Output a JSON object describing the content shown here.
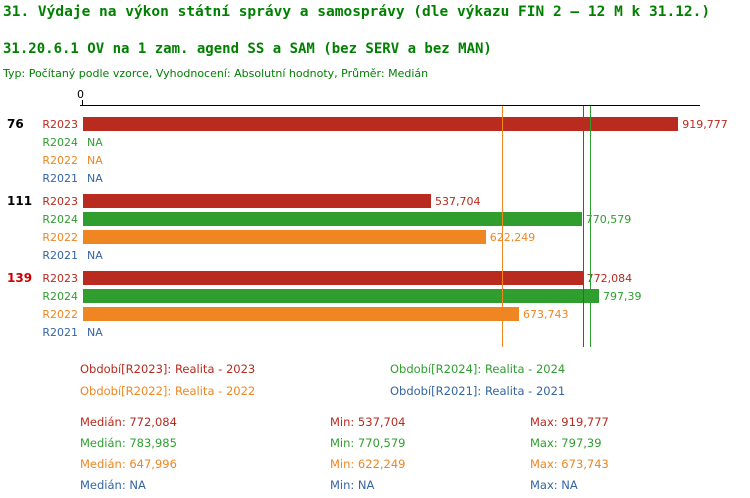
{
  "title": "31. Výdaje na výkon státní správy a samosprávy (dle výkazu FIN 2 – 12 M k 31.12.)",
  "subtitle": "31.20.6.1 OV na 1 zam. agend SS a SAM (bez SERV a bez MAN)",
  "meta": "Typ: Počítaný podle vzorce, Vyhodnocení: Absolutní hodnoty, Průměr: Medián",
  "colors": {
    "title_green": "#008000",
    "r2023": "#b82b1e",
    "r2024": "#2f9e2f",
    "r2022": "#ef8622",
    "r2021": "#3465a4",
    "axis": "#000000"
  },
  "chart_data": {
    "type": "bar",
    "orientation": "horizontal",
    "title": "31. Výdaje na výkon státní správy a samosprávy (dle výkazu FIN 2 – 12 M k 31.12.)",
    "subtitle": "31.20.6.1 OV na 1 zam. agend SS a SAM (bez SERV a bez MAN)",
    "axis": {
      "origin_label": "0",
      "xmin": 0,
      "xmax": 958000,
      "grid": "off"
    },
    "groups": [
      {
        "label": "76",
        "label_color": "#000000",
        "bars": [
          {
            "series": "R2023",
            "value": 919777,
            "display": "919,777"
          },
          {
            "series": "R2024",
            "value": null,
            "display": "NA"
          },
          {
            "series": "R2022",
            "value": null,
            "display": "NA"
          },
          {
            "series": "R2021",
            "value": null,
            "display": "NA"
          }
        ]
      },
      {
        "label": "111",
        "label_color": "#000000",
        "bars": [
          {
            "series": "R2023",
            "value": 537704,
            "display": "537,704"
          },
          {
            "series": "R2024",
            "value": 770579,
            "display": "770,579"
          },
          {
            "series": "R2022",
            "value": 622249,
            "display": "622,249"
          },
          {
            "series": "R2021",
            "value": null,
            "display": "NA"
          }
        ]
      },
      {
        "label": "139",
        "label_color": "#cc0000",
        "bars": [
          {
            "series": "R2023",
            "value": 772084,
            "display": "772,084"
          },
          {
            "series": "R2024",
            "value": 797390,
            "display": "797,39"
          },
          {
            "series": "R2022",
            "value": 673743,
            "display": "673,743"
          },
          {
            "series": "R2021",
            "value": null,
            "display": "NA"
          }
        ]
      }
    ],
    "reference_lines": [
      {
        "name": "median-2022",
        "series": "R2022",
        "value": 647996
      },
      {
        "name": "median-2023",
        "series": "R2023",
        "value": 772084
      },
      {
        "name": "median-2024",
        "series": "R2024",
        "value": 783985
      }
    ],
    "legend": [
      {
        "series": "R2023",
        "text": "Období[R2023]: Realita - 2023"
      },
      {
        "series": "R2024",
        "text": "Období[R2024]: Realita - 2024"
      },
      {
        "series": "R2022",
        "text": "Období[R2022]: Realita - 2022"
      },
      {
        "series": "R2021",
        "text": "Období[R2021]: Realita - 2021"
      }
    ],
    "stats": [
      {
        "series": "R2023",
        "median": "Medián: 772,084",
        "min": "Min: 537,704",
        "max": "Max: 919,777"
      },
      {
        "series": "R2024",
        "median": "Medián: 783,985",
        "min": "Min: 770,579",
        "max": "Max: 797,39"
      },
      {
        "series": "R2022",
        "median": "Medián: 647,996",
        "min": "Min: 622,249",
        "max": "Max: 673,743"
      },
      {
        "series": "R2021",
        "median": "Medián: NA",
        "min": "Min: NA",
        "max": "Max: NA"
      }
    ]
  }
}
